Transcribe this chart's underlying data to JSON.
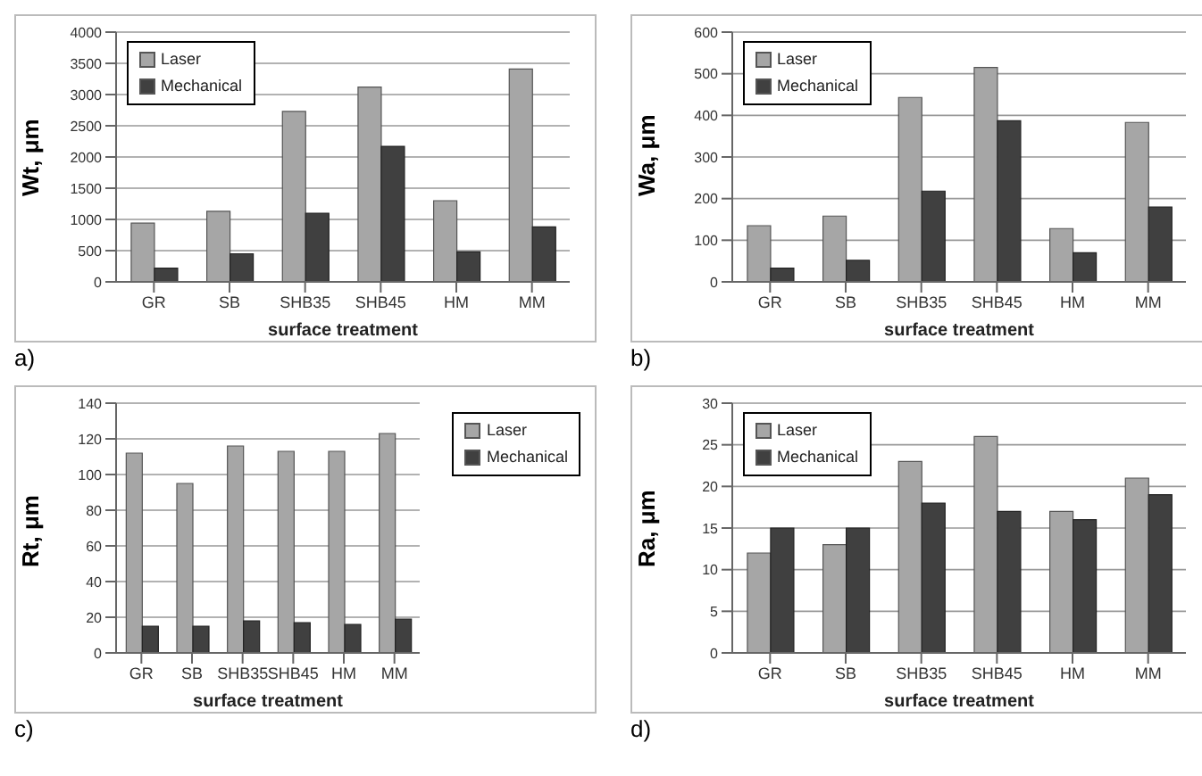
{
  "chart_data": [
    {
      "type": "bar",
      "categories": [
        "GR",
        "SB",
        "SHB35",
        "SHB45",
        "HM",
        "MM"
      ],
      "xlabel": "surface treatment",
      "ylabel": "Wt, μm",
      "ylim": [
        0,
        4000
      ],
      "yticks": [
        0,
        500,
        1000,
        1500,
        2000,
        2500,
        3000,
        3500,
        4000
      ],
      "grid": "y",
      "legend": "top left",
      "annotations": [
        "a)"
      ],
      "series": [
        {
          "name": "Laser",
          "color": "#a6a6a6",
          "values": [
            940,
            1130,
            2730,
            3120,
            1300,
            3410
          ]
        },
        {
          "name": "Mechanical",
          "color": "#404040",
          "values": [
            220,
            450,
            1100,
            2170,
            480,
            880
          ]
        }
      ]
    },
    {
      "type": "bar",
      "categories": [
        "GR",
        "SB",
        "SHB35",
        "SHB45",
        "HM",
        "MM"
      ],
      "xlabel": "surface treatment",
      "ylabel": "Wa, μm",
      "ylim": [
        0,
        600
      ],
      "yticks": [
        0,
        100,
        200,
        300,
        400,
        500,
        600
      ],
      "grid": "y",
      "legend": "top left",
      "annotations": [
        "b)"
      ],
      "series": [
        {
          "name": "Laser",
          "color": "#a6a6a6",
          "values": [
            135,
            158,
            443,
            515,
            128,
            383
          ]
        },
        {
          "name": "Mechanical",
          "color": "#404040",
          "values": [
            33,
            52,
            218,
            387,
            70,
            180
          ]
        }
      ]
    },
    {
      "type": "bar",
      "categories": [
        "GR",
        "SB",
        "SHB35",
        "SHB45",
        "HM",
        "MM"
      ],
      "xlabel": "surface treatment",
      "ylabel": "Rt, μm",
      "ylim": [
        0,
        140
      ],
      "yticks": [
        0,
        20,
        40,
        60,
        80,
        100,
        120,
        140
      ],
      "grid": "y",
      "legend": "right",
      "annotations": [
        "c)"
      ],
      "series": [
        {
          "name": "Laser",
          "color": "#a6a6a6",
          "values": [
            112,
            95,
            116,
            113,
            113,
            123
          ]
        },
        {
          "name": "Mechanical",
          "color": "#404040",
          "values": [
            15,
            15,
            18,
            17,
            16,
            19
          ]
        }
      ]
    },
    {
      "type": "bar",
      "categories": [
        "GR",
        "SB",
        "SHB35",
        "SHB45",
        "HM",
        "MM"
      ],
      "xlabel": "surface treatment",
      "ylabel": "Ra, μm",
      "ylim": [
        0,
        30
      ],
      "yticks": [
        0,
        5,
        10,
        15,
        20,
        25,
        30
      ],
      "grid": "y",
      "legend": "top left",
      "annotations": [
        "d)"
      ],
      "series": [
        {
          "name": "Laser",
          "color": "#a6a6a6",
          "values": [
            12,
            13,
            23,
            26,
            17,
            21
          ]
        },
        {
          "name": "Mechanical",
          "color": "#404040",
          "values": [
            15,
            15,
            18,
            17,
            16,
            19
          ]
        }
      ]
    }
  ]
}
